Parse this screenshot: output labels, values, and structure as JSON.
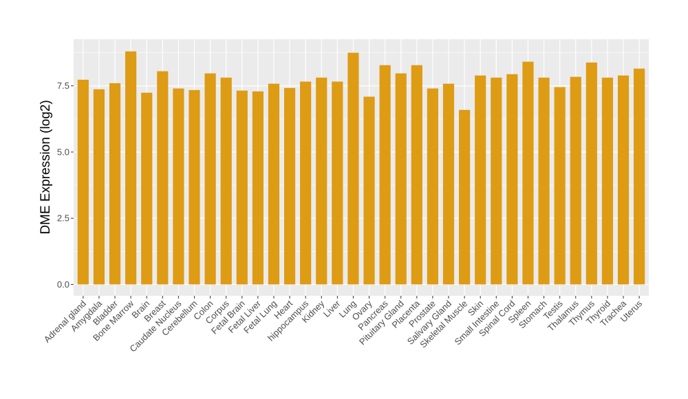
{
  "chart_data": {
    "type": "bar",
    "title": "",
    "xlabel": "",
    "ylabel": "DME Expression (log2)",
    "ylim": [
      -0.43,
      9.26
    ],
    "yticks": [
      0.0,
      2.5,
      5.0,
      7.5
    ],
    "ytick_labels": [
      "0.0",
      "2.5",
      "5.0",
      "7.5"
    ],
    "grid": true,
    "bar_color": "#DE9B14",
    "panel_color": "#EBEBEB",
    "categories": [
      "Adrenal gland",
      "Amygdala",
      "Bladder",
      "Bone Marrow",
      "Brain",
      "Breast",
      "Caudate Nucleus",
      "Cerebellum",
      "Colon",
      "Corpus",
      "Fetal Brain",
      "Fetal Liver",
      "Fetal Lung",
      "Heart",
      "hippocampus",
      "Kidney",
      "Liver",
      "Lung",
      "Ovary",
      "Pancreas",
      "Pituitary Gland",
      "Placenta",
      "Prostate",
      "Salivary Gland",
      "Skeletal Muscle",
      "Skin",
      "Small Intestine",
      "Spinal Cord",
      "Spleen",
      "Stomach",
      "Testis",
      "Thalamus",
      "Thymus",
      "Thyroid",
      "Trachea",
      "Uterus"
    ],
    "values": [
      7.73,
      7.37,
      7.6,
      8.8,
      7.24,
      8.05,
      7.4,
      7.34,
      7.97,
      7.81,
      7.32,
      7.29,
      7.58,
      7.42,
      7.66,
      7.81,
      7.66,
      8.75,
      7.09,
      8.28,
      7.97,
      8.28,
      7.4,
      7.58,
      6.59,
      7.89,
      7.81,
      7.94,
      8.41,
      7.81,
      7.45,
      7.84,
      8.38,
      7.81,
      7.89,
      8.15
    ]
  }
}
